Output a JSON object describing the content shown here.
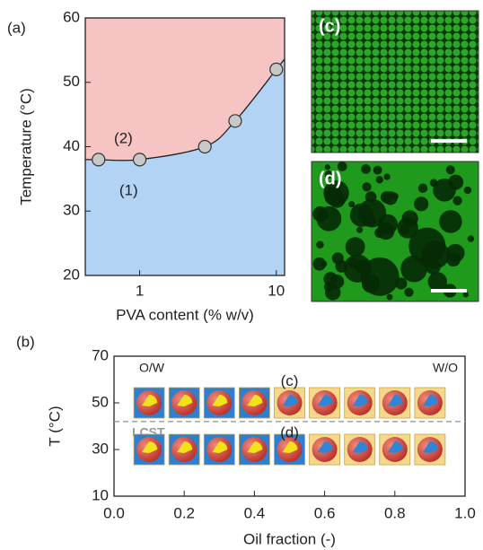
{
  "chart_data": [
    {
      "type": "line",
      "panel_label": "(a)",
      "xlabel": "PVA content (% w/v)",
      "ylabel": "Temperature (°C)",
      "x": [
        0.5,
        1,
        3,
        5,
        10
      ],
      "values": [
        38,
        38,
        40,
        44,
        52
      ],
      "xlog": true,
      "xlim": [
        0.4,
        11.5
      ],
      "xticks": [
        1,
        10
      ],
      "ylim": [
        20,
        60
      ],
      "yticks": [
        20,
        30,
        40,
        50,
        60
      ],
      "upper_color": "#f7c4c4",
      "lower_color": "#b3d3f5",
      "marker_color": "#c8c8c8",
      "annotations": [
        {
          "text": "(2)",
          "x": 0.76,
          "y": 41.2
        },
        {
          "text": "(1)",
          "x": 0.83,
          "y": 33.1
        }
      ]
    },
    {
      "type": "image",
      "panel_label": "(c)"
    },
    {
      "type": "image",
      "panel_label": "(d)"
    },
    {
      "type": "scatter",
      "panel_label": "(b)",
      "xlabel": "Oil fraction (-)",
      "ylabel": "T (°C)",
      "xlim": [
        0,
        1
      ],
      "xticks": [
        {
          "value": 0,
          "label": "0.0"
        },
        0.2,
        0.4,
        0.6,
        0.8,
        {
          "value": 1,
          "label": "1.0"
        }
      ],
      "ylim": [
        10,
        70
      ],
      "yticks": [
        10,
        30,
        50,
        70
      ],
      "series": [
        {
          "name": "O/W",
          "color": "#2f7fd0",
          "core_color": "#f2e21a",
          "x": [
            0.1,
            0.2,
            0.3,
            0.4,
            0.1,
            0.2,
            0.3,
            0.4,
            0.5
          ],
          "values": [
            50,
            50,
            50,
            50,
            30,
            30,
            30,
            30,
            30
          ]
        },
        {
          "name": "W/O",
          "color": "#f5d88a",
          "core_color": "#2f86d8",
          "x": [
            0.5,
            0.6,
            0.7,
            0.8,
            0.9,
            0.6,
            0.7,
            0.8,
            0.9
          ],
          "values": [
            50,
            50,
            50,
            50,
            50,
            30,
            30,
            30,
            30
          ]
        }
      ],
      "hline": {
        "label": "LCST",
        "value": 42
      },
      "annotations": [
        {
          "text": "(c)",
          "x": 0.5,
          "y": 59
        },
        {
          "text": "(d)",
          "x": 0.5,
          "y": 37
        }
      ]
    }
  ]
}
